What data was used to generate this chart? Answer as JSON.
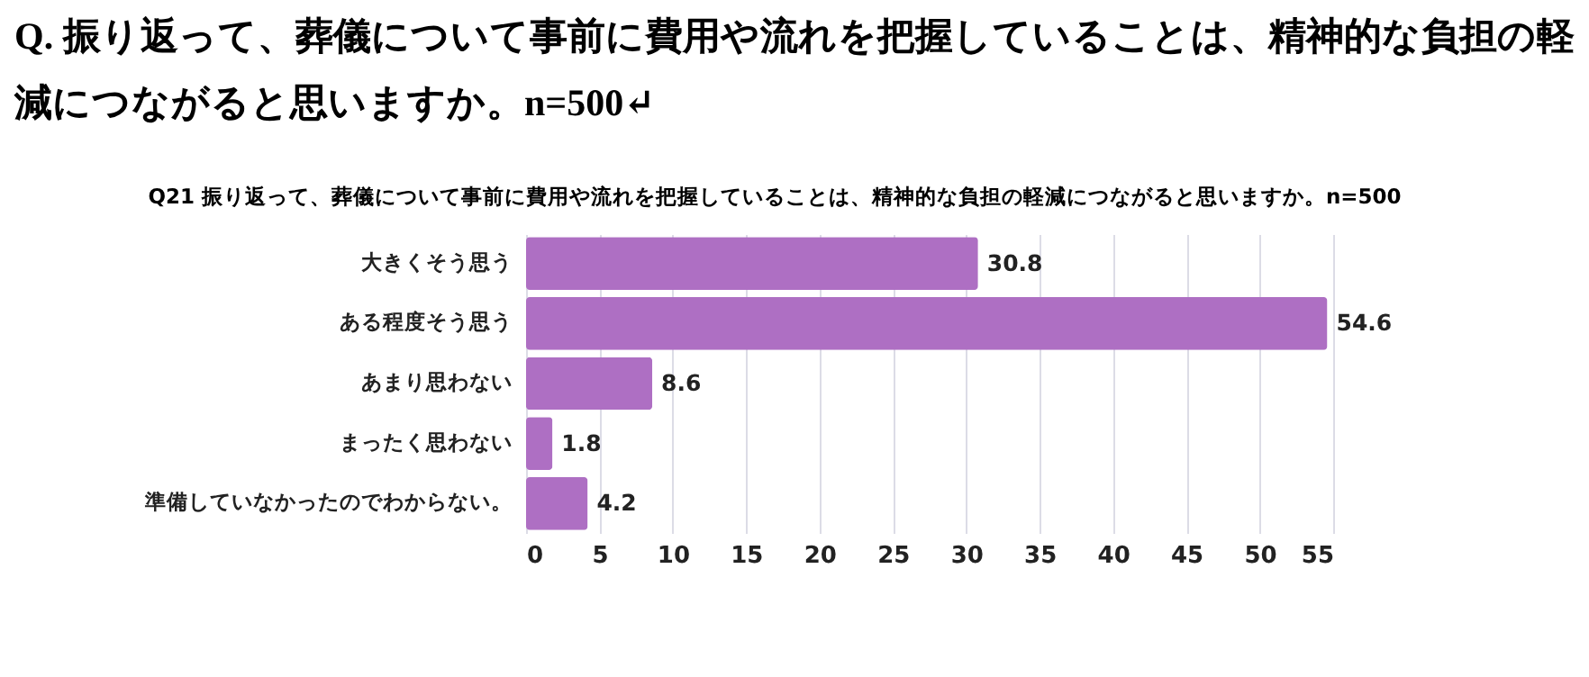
{
  "chart_data": {
    "type": "bar",
    "orientation": "horizontal",
    "title": "Q. 振り返って、葬儀について事前に費用や流れを把握していることは、精神的な負担の軽減につながると思いますか。n=500↵",
    "subtitle": "Q21 振り返って、葬儀について事前に費用や流れを把握していることは、精神的な負担の軽減につながると思いますか。n=500",
    "categories": [
      "大きくそう思う",
      "ある程度そう思う",
      "あまり思わない",
      "まったく思わない",
      "準備していなかったのでわからない。"
    ],
    "values": [
      30.8,
      54.6,
      8.6,
      1.8,
      4.2
    ],
    "color": "#ae6fc3",
    "xlim": [
      0,
      55
    ],
    "xticks": [
      0,
      5,
      10,
      15,
      20,
      25,
      30,
      35,
      40,
      45,
      50,
      55
    ],
    "grid": "x",
    "data_labels": true
  }
}
